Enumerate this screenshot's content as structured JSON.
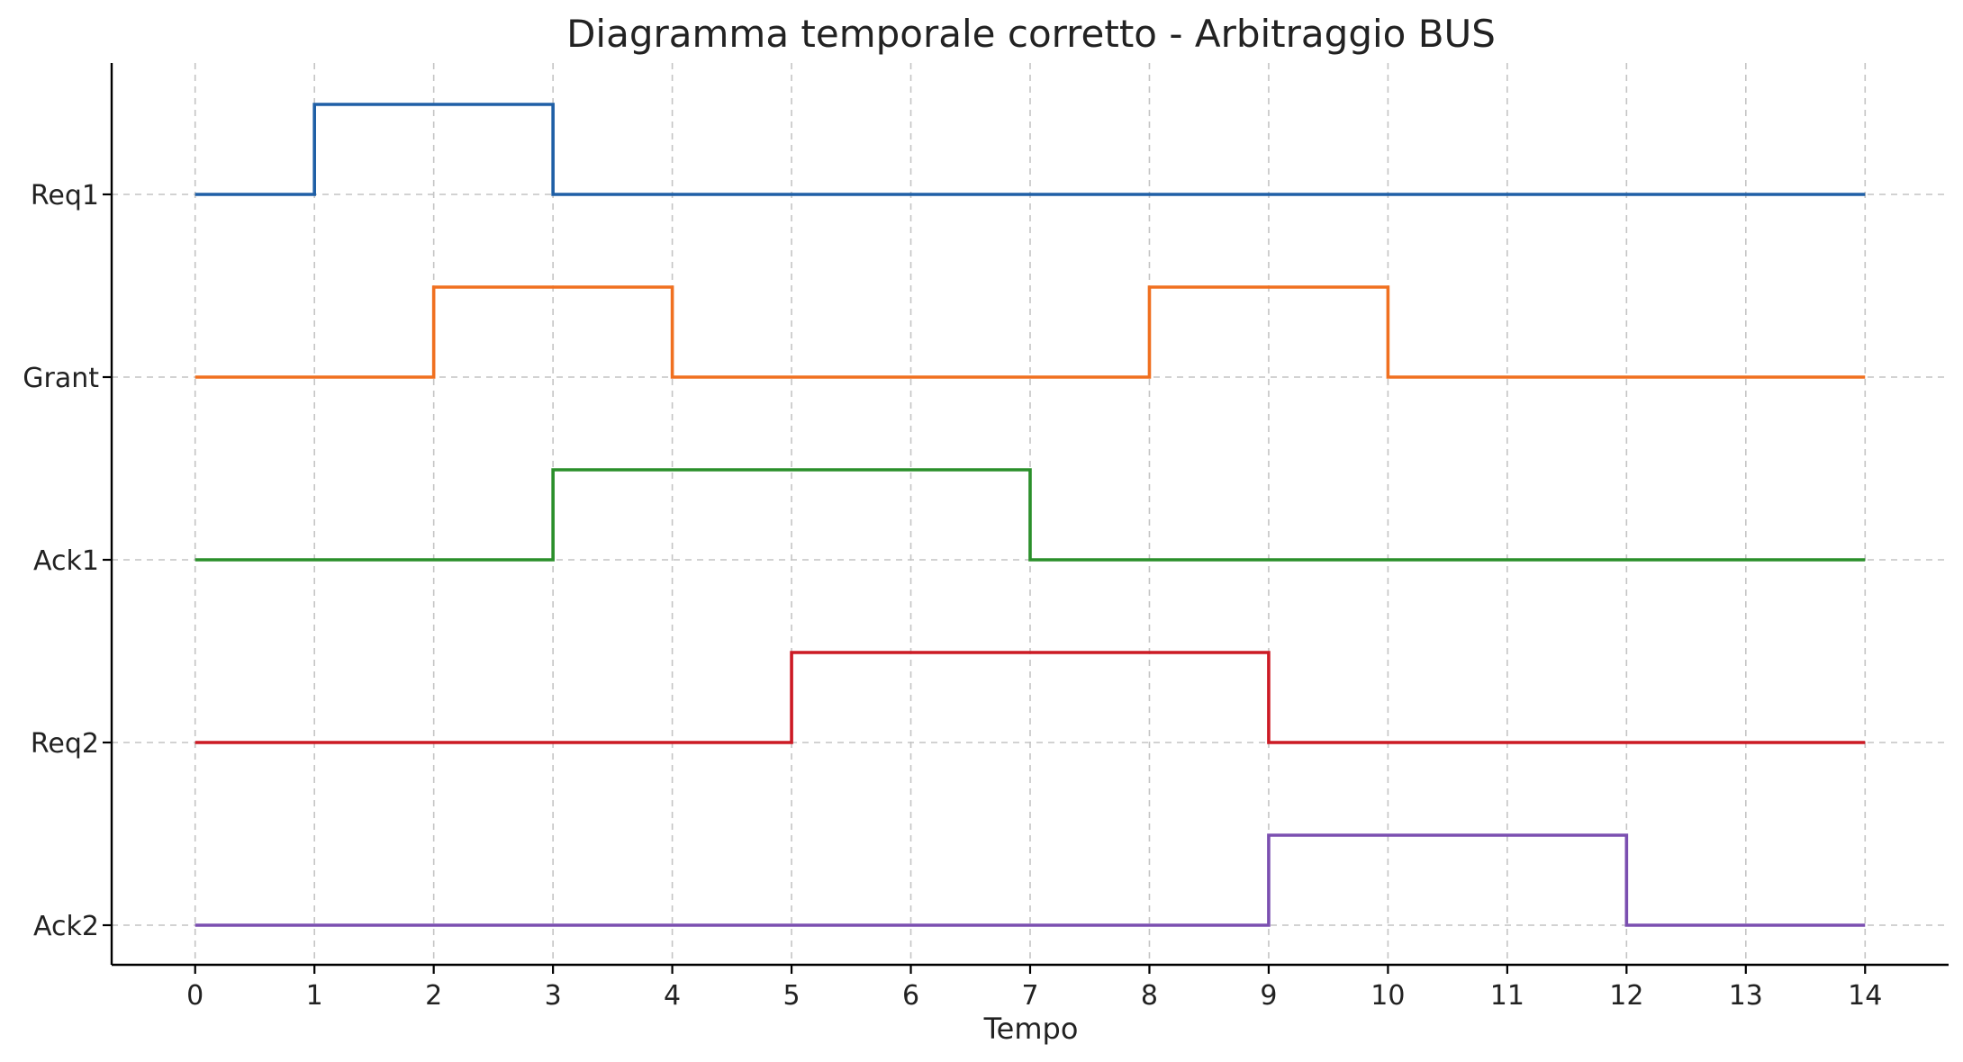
{
  "chart_data": {
    "type": "line",
    "title": "Diagramma temporale corretto - Arbitraggio BUS",
    "xlabel": "Tempo",
    "ylabel": "",
    "xlim": [
      -0.7,
      14.7
    ],
    "xticks": [
      "0",
      "1",
      "2",
      "3",
      "4",
      "5",
      "6",
      "7",
      "8",
      "9",
      "10",
      "11",
      "12",
      "13",
      "14"
    ],
    "grid": true,
    "step": "post",
    "series": [
      {
        "name": "Req1",
        "color": "#1f5fa6",
        "x": [
          0,
          1,
          3,
          14
        ],
        "values": [
          0,
          1,
          0,
          0
        ]
      },
      {
        "name": "Grant",
        "color": "#f07020",
        "x": [
          0,
          2,
          4,
          8,
          10,
          14
        ],
        "values": [
          0,
          1,
          0,
          1,
          0,
          0
        ]
      },
      {
        "name": "Ack1",
        "color": "#2a8f2a",
        "x": [
          0,
          3,
          7,
          14
        ],
        "values": [
          0,
          1,
          0,
          0
        ]
      },
      {
        "name": "Req2",
        "color": "#cc1a24",
        "x": [
          0,
          5,
          9,
          14
        ],
        "values": [
          0,
          1,
          0,
          0
        ]
      },
      {
        "name": "Ack2",
        "color": "#7b4fb0",
        "x": [
          0,
          9,
          12,
          14
        ],
        "values": [
          0,
          1,
          0,
          0
        ]
      }
    ]
  }
}
